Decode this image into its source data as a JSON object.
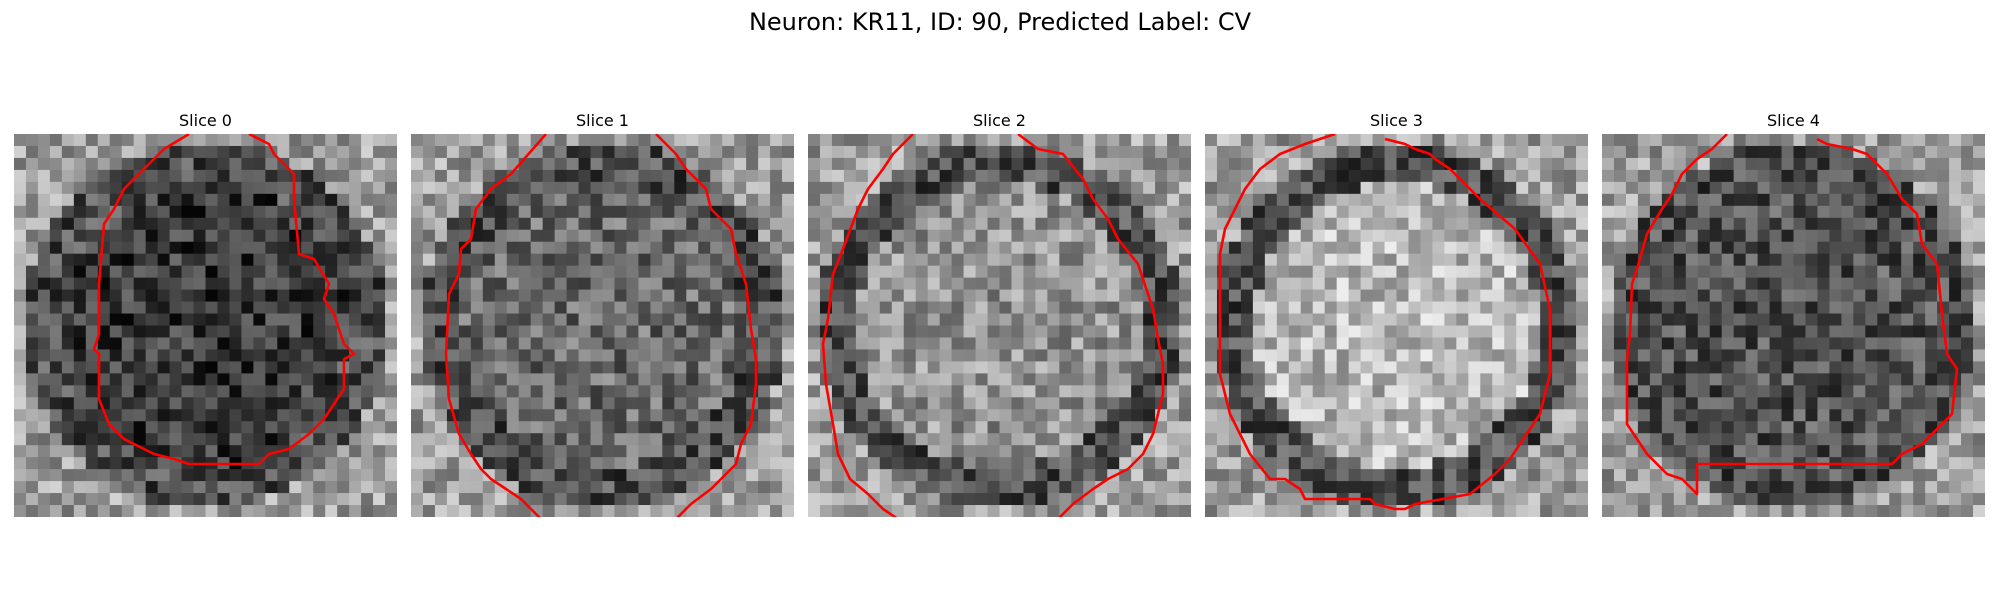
{
  "figure": {
    "title": "Neuron: KR11, ID: 90, Predicted Label: CV"
  },
  "panels": [
    {
      "title": "Slice 0",
      "seed": 11,
      "center_brightness": "dark"
    },
    {
      "title": "Slice 1",
      "seed": 23,
      "center_brightness": "mid"
    },
    {
      "title": "Slice 2",
      "seed": 37,
      "center_brightness": "light"
    },
    {
      "title": "Slice 3",
      "seed": 41,
      "center_brightness": "bright"
    },
    {
      "title": "Slice 4",
      "seed": 53,
      "center_brightness": "mid-dark"
    }
  ],
  "style": {
    "contour_color": "#ff0000",
    "colormap": "gray",
    "grid_size": 32
  }
}
